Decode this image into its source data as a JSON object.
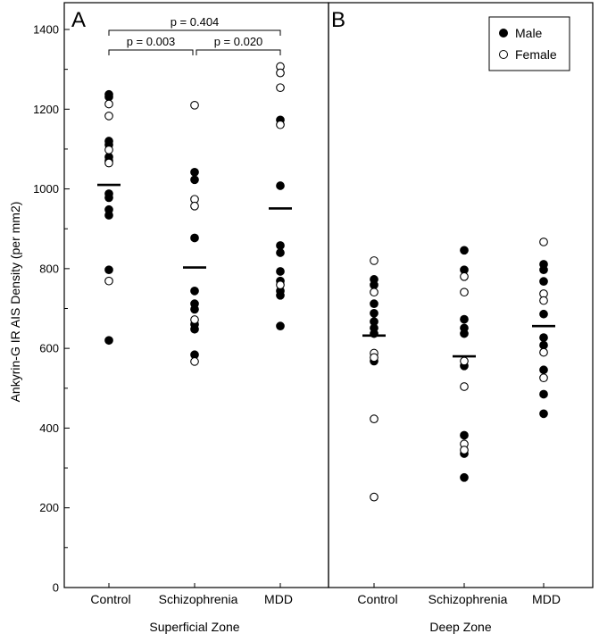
{
  "chart_data": {
    "type": "scatter",
    "ylabel": "Ankyrin-G IR AIS Density (per mm2)",
    "ylim": [
      0,
      1400
    ],
    "yticks": [
      0,
      200,
      400,
      600,
      800,
      1000,
      1200,
      1400
    ],
    "categories": [
      "Control",
      "Schizophrenia",
      "MDD"
    ],
    "legend": {
      "position": "top-right",
      "entries": [
        {
          "label": "Male",
          "marker": "filled-circle"
        },
        {
          "label": "Female",
          "marker": "open-circle"
        }
      ]
    },
    "panels": [
      {
        "letter": "A",
        "zone": "Superficial Zone",
        "means": [
          1010,
          803,
          951
        ],
        "comparisons": [
          {
            "from": 0,
            "to": 1,
            "label": "p = 0.003",
            "level": 0
          },
          {
            "from": 1,
            "to": 2,
            "label": "p = 0.020",
            "level": 0
          },
          {
            "from": 0,
            "to": 2,
            "label": "p = 0.404",
            "level": 1
          }
        ],
        "series": [
          {
            "name": "Male",
            "points": [
              {
                "cat": 0,
                "y": 1237
              },
              {
                "cat": 0,
                "y": 1231
              },
              {
                "cat": 0,
                "y": 1120
              },
              {
                "cat": 0,
                "y": 1111
              },
              {
                "cat": 0,
                "y": 1080
              },
              {
                "cat": 0,
                "y": 1070
              },
              {
                "cat": 0,
                "y": 988
              },
              {
                "cat": 0,
                "y": 978
              },
              {
                "cat": 0,
                "y": 948
              },
              {
                "cat": 0,
                "y": 934
              },
              {
                "cat": 0,
                "y": 797
              },
              {
                "cat": 0,
                "y": 620
              },
              {
                "cat": 1,
                "y": 1042
              },
              {
                "cat": 1,
                "y": 1023
              },
              {
                "cat": 1,
                "y": 877
              },
              {
                "cat": 1,
                "y": 744
              },
              {
                "cat": 1,
                "y": 712
              },
              {
                "cat": 1,
                "y": 698
              },
              {
                "cat": 1,
                "y": 660
              },
              {
                "cat": 1,
                "y": 648
              },
              {
                "cat": 1,
                "y": 584
              },
              {
                "cat": 2,
                "y": 1173
              },
              {
                "cat": 2,
                "y": 1008
              },
              {
                "cat": 2,
                "y": 858
              },
              {
                "cat": 2,
                "y": 840
              },
              {
                "cat": 2,
                "y": 793
              },
              {
                "cat": 2,
                "y": 769
              },
              {
                "cat": 2,
                "y": 744
              },
              {
                "cat": 2,
                "y": 733
              },
              {
                "cat": 2,
                "y": 656
              }
            ]
          },
          {
            "name": "Female",
            "points": [
              {
                "cat": 0,
                "y": 1213
              },
              {
                "cat": 0,
                "y": 1183
              },
              {
                "cat": 0,
                "y": 1098
              },
              {
                "cat": 0,
                "y": 1065
              },
              {
                "cat": 0,
                "y": 769
              },
              {
                "cat": 1,
                "y": 1210
              },
              {
                "cat": 1,
                "y": 974
              },
              {
                "cat": 1,
                "y": 957
              },
              {
                "cat": 1,
                "y": 672
              },
              {
                "cat": 1,
                "y": 567
              },
              {
                "cat": 2,
                "y": 1307
              },
              {
                "cat": 2,
                "y": 1291
              },
              {
                "cat": 2,
                "y": 1254
              },
              {
                "cat": 2,
                "y": 1161
              },
              {
                "cat": 2,
                "y": 759
              }
            ]
          }
        ]
      },
      {
        "letter": "B",
        "zone": "Deep Zone",
        "means": [
          632,
          580,
          656
        ],
        "comparisons": [],
        "series": [
          {
            "name": "Male",
            "points": [
              {
                "cat": 0,
                "y": 773
              },
              {
                "cat": 0,
                "y": 759
              },
              {
                "cat": 0,
                "y": 712
              },
              {
                "cat": 0,
                "y": 688
              },
              {
                "cat": 0,
                "y": 667
              },
              {
                "cat": 0,
                "y": 651
              },
              {
                "cat": 0,
                "y": 637
              },
              {
                "cat": 0,
                "y": 568
              },
              {
                "cat": 1,
                "y": 846
              },
              {
                "cat": 1,
                "y": 797
              },
              {
                "cat": 1,
                "y": 673
              },
              {
                "cat": 1,
                "y": 651
              },
              {
                "cat": 1,
                "y": 637
              },
              {
                "cat": 1,
                "y": 556
              },
              {
                "cat": 1,
                "y": 382
              },
              {
                "cat": 1,
                "y": 336
              },
              {
                "cat": 1,
                "y": 276
              },
              {
                "cat": 2,
                "y": 811
              },
              {
                "cat": 2,
                "y": 797
              },
              {
                "cat": 2,
                "y": 768
              },
              {
                "cat": 2,
                "y": 686
              },
              {
                "cat": 2,
                "y": 627
              },
              {
                "cat": 2,
                "y": 608
              },
              {
                "cat": 2,
                "y": 546
              },
              {
                "cat": 2,
                "y": 485
              },
              {
                "cat": 2,
                "y": 436
              }
            ]
          },
          {
            "name": "Female",
            "points": [
              {
                "cat": 0,
                "y": 820
              },
              {
                "cat": 0,
                "y": 741
              },
              {
                "cat": 0,
                "y": 588
              },
              {
                "cat": 0,
                "y": 577
              },
              {
                "cat": 0,
                "y": 423
              },
              {
                "cat": 0,
                "y": 227
              },
              {
                "cat": 1,
                "y": 780
              },
              {
                "cat": 1,
                "y": 741
              },
              {
                "cat": 1,
                "y": 568
              },
              {
                "cat": 1,
                "y": 504
              },
              {
                "cat": 1,
                "y": 360
              },
              {
                "cat": 1,
                "y": 345
              },
              {
                "cat": 2,
                "y": 867
              },
              {
                "cat": 2,
                "y": 737
              },
              {
                "cat": 2,
                "y": 720
              },
              {
                "cat": 2,
                "y": 590
              },
              {
                "cat": 2,
                "y": 526
              }
            ]
          }
        ]
      }
    ]
  }
}
